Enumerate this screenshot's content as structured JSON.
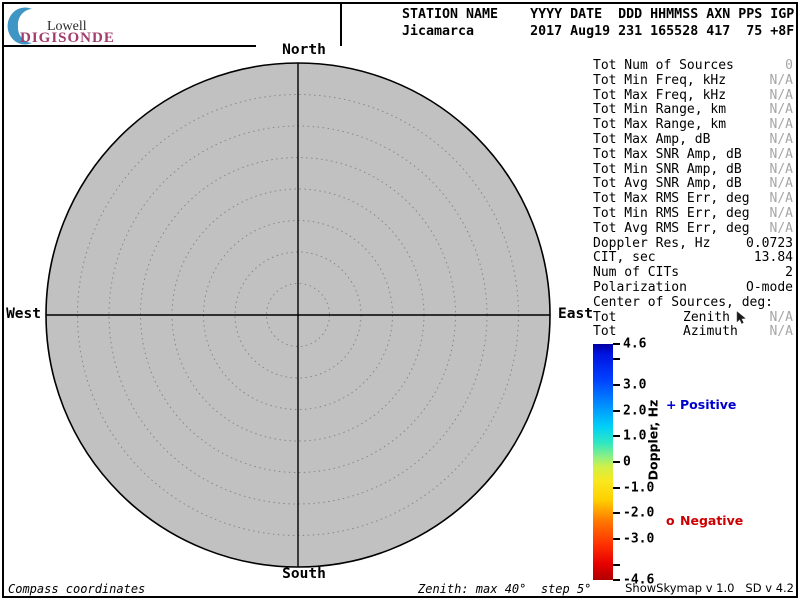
{
  "logo": {
    "line1": "Lowell",
    "line2": "DIGISONDE"
  },
  "header": {
    "columns": "STATION NAME    YYYY DATE  DDD HHMMSS AXN PPS IGP",
    "values": "Jicamarca       2017 Aug19 231 165528 417  75 +8F"
  },
  "compass": {
    "north": "North",
    "south": "South",
    "west": "West",
    "east": "East"
  },
  "stats": {
    "rows": [
      {
        "label": "Tot Num of Sources",
        "value": "0",
        "muted": true
      },
      {
        "label": "Tot Min Freq, kHz",
        "value": "N/A",
        "muted": true
      },
      {
        "label": "Tot Max Freq, kHz",
        "value": "N/A",
        "muted": true
      },
      {
        "label": "Tot Min Range, km",
        "value": "N/A",
        "muted": true
      },
      {
        "label": "Tot Max Range, km",
        "value": "N/A",
        "muted": true
      },
      {
        "label": "Tot Max Amp, dB",
        "value": "N/A",
        "muted": true
      },
      {
        "label": "Tot Max SNR Amp, dB",
        "value": "N/A",
        "muted": true
      },
      {
        "label": "Tot Min SNR Amp, dB",
        "value": "N/A",
        "muted": true
      },
      {
        "label": "Tot Avg SNR Amp, dB",
        "value": "N/A",
        "muted": true
      },
      {
        "label": "Tot Max RMS Err, deg",
        "value": "N/A",
        "muted": true
      },
      {
        "label": "Tot Min RMS Err, deg",
        "value": "N/A",
        "muted": true
      },
      {
        "label": "Tot Avg RMS Err, deg",
        "value": "N/A",
        "muted": true
      },
      {
        "label": "Doppler Res, Hz",
        "value": "0.0723",
        "muted": false
      },
      {
        "label": "CIT, sec",
        "value": "13.84",
        "muted": false
      },
      {
        "label": "Num of CITs",
        "value": "2",
        "muted": false
      },
      {
        "label": "Polarization",
        "value": "O-mode",
        "muted": false
      },
      {
        "label": "Center of Sources, deg:",
        "value": "",
        "muted": false
      },
      {
        "label": "Tot",
        "mid": "Zenith",
        "value": "N/A",
        "muted": true
      },
      {
        "label": "Tot",
        "mid": "Azimuth",
        "value": "N/A",
        "muted": true
      }
    ]
  },
  "colorbar": {
    "title": "Doppler, Hz",
    "max": 4.6,
    "min": -4.6,
    "ticks": [
      {
        "v": 4.6,
        "label": "4.6"
      },
      {
        "v": 4.0,
        "label": ""
      },
      {
        "v": 3.0,
        "label": "3.0"
      },
      {
        "v": 2.0,
        "label": "2.0"
      },
      {
        "v": 1.0,
        "label": "1.0"
      },
      {
        "v": 0,
        "label": "0"
      },
      {
        "v": -1.0,
        "label": "-1.0"
      },
      {
        "v": -2.0,
        "label": "-2.0"
      },
      {
        "v": -3.0,
        "label": "-3.0"
      },
      {
        "v": -4.0,
        "label": ""
      },
      {
        "v": -4.6,
        "label": "-4.6"
      }
    ]
  },
  "legend": {
    "positive_marker": "+",
    "positive_label": "Positive",
    "positive_color": "#0000cc",
    "negative_marker": "o",
    "negative_label": "Negative",
    "negative_color": "#cc0000"
  },
  "footer": {
    "coords": "Compass coordinates",
    "zenith": "Zenith: max 40°  step 5°",
    "version": "ShowSkymap v 1.0   SD v 4.2"
  },
  "skymap": {
    "zenith_max_deg": 40,
    "zenith_step_deg": 5,
    "rings": 8,
    "sources": [],
    "plot_fill": "#c1c1c1"
  },
  "colors": {
    "muted": "#a6a6a6",
    "digisonde_text": "#a23c6c",
    "crescent": "#3f96c4"
  }
}
